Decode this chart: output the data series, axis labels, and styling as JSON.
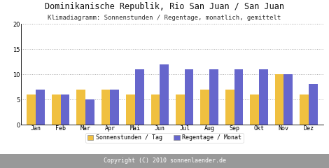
{
  "title": "Dominikanische Republik, Rio San Juan / San Juan",
  "subtitle": "Klimadiagramm: Sonnenstunden / Regentage, monatlich, gemittelt",
  "copyright": "Copyright (C) 2010 sonnenlaender.de",
  "months": [
    "Jan",
    "Feb",
    "Mar",
    "Apr",
    "Mai",
    "Jun",
    "Jul",
    "Aug",
    "Sep",
    "Okt",
    "Nov",
    "Dez"
  ],
  "sonnenstunden": [
    6,
    6,
    7,
    7,
    6,
    6,
    6,
    7,
    7,
    6,
    10,
    6
  ],
  "regentage": [
    7,
    6,
    5,
    7,
    11,
    12,
    11,
    11,
    11,
    11,
    10,
    8
  ],
  "bar_color_sonnen": "#f0c040",
  "bar_color_regen": "#6666cc",
  "background_color": "#ffffff",
  "plot_bg_color": "#ffffff",
  "grid_color": "#aaaaaa",
  "ylim": [
    0,
    20
  ],
  "yticks": [
    0,
    5,
    10,
    15,
    20
  ],
  "legend_sonnen": "Sonnenstunden / Tag",
  "legend_regen": "Regentage / Monat",
  "title_fontsize": 8.5,
  "subtitle_fontsize": 6.5,
  "axis_fontsize": 6.0,
  "legend_fontsize": 6.0,
  "copyright_bg": "#999999",
  "copyright_color": "#ffffff",
  "copyright_fontsize": 6.0
}
